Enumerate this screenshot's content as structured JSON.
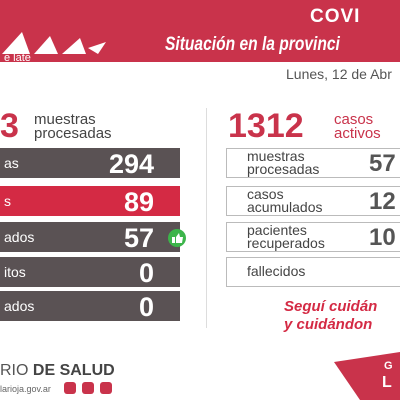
{
  "header": {
    "title": "COVI",
    "subtitle": "Situación en la provinci",
    "date": "Lunes, 12 de Abr",
    "logo": "e late"
  },
  "left": {
    "total": 3,
    "total_label": [
      "muestras",
      "procesadas"
    ],
    "rows": [
      {
        "label": "as",
        "value": 294
      },
      {
        "label": "s",
        "value": 89
      },
      {
        "label": "ados",
        "value": 57
      },
      {
        "label": "itos",
        "value": 0
      },
      {
        "label": "ados",
        "value": 0
      }
    ]
  },
  "right": {
    "total": 1312,
    "total_label": [
      "casos",
      "activos"
    ],
    "rows": [
      {
        "label": [
          "muestras",
          "procesadas"
        ],
        "value": 57
      },
      {
        "label": [
          "casos",
          "acumulados"
        ],
        "value": 12
      },
      {
        "label": [
          "pacientes",
          "recuperados"
        ],
        "value": 10
      },
      {
        "label": [
          "fallecidos"
        ]
      }
    ]
  },
  "slogan": [
    "Seguí cuidán",
    "y cuidándon"
  ],
  "footer": {
    "ministry_light": "RIO",
    "ministry_bold": "DE SALUD",
    "url": "larioja.gov.ar",
    "mark_top": "G",
    "mark_bottom": "L"
  }
}
